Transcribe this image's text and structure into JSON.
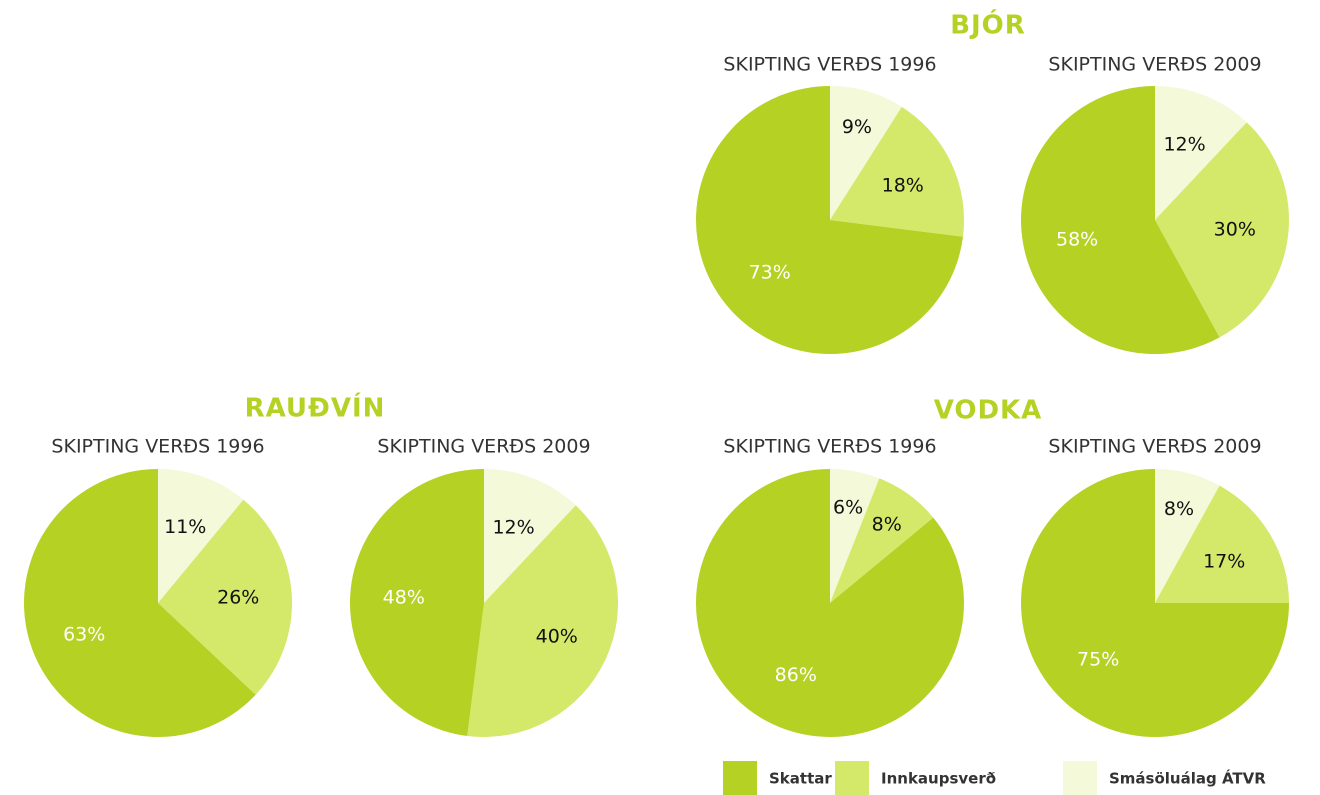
{
  "groups": [
    "BJÓR",
    "RAUÐVÍN",
    "VODKA"
  ],
  "chart_data": [
    {
      "type": "pie",
      "title": "SKIPTING VERÐS 1996",
      "categories": [
        "Skattar",
        "Innkaupsverð",
        "Smásöluálag ÁTVR"
      ],
      "colors": [
        "#b5d124",
        "#d4e86a",
        "#f3f9d9"
      ],
      "values": [
        73,
        18,
        9
      ],
      "value_labels": [
        "73%",
        "18%",
        "9%"
      ]
    },
    {
      "type": "pie",
      "title": "SKIPTING VERÐS 2009",
      "categories": [
        "Skattar",
        "Innkaupsverð",
        "Smásöluálag ÁTVR"
      ],
      "colors": [
        "#b5d124",
        "#d4e86a",
        "#f3f9d9"
      ],
      "values": [
        58,
        30,
        12
      ],
      "value_labels": [
        "58%",
        "30%",
        "12%"
      ]
    },
    {
      "type": "pie",
      "title": "SKIPTING VERÐS 1996",
      "categories": [
        "Skattar",
        "Innkaupsverð",
        "Smásöluálag ÁTVR"
      ],
      "colors": [
        "#b5d124",
        "#d4e86a",
        "#f3f9d9"
      ],
      "values": [
        63,
        26,
        11
      ],
      "value_labels": [
        "63%",
        "26%",
        "11%"
      ]
    },
    {
      "type": "pie",
      "title": "SKIPTING VERÐS 2009",
      "categories": [
        "Skattar",
        "Innkaupsverð",
        "Smásöluálag ÁTVR"
      ],
      "colors": [
        "#b5d124",
        "#d4e86a",
        "#f3f9d9"
      ],
      "values": [
        48,
        40,
        12
      ],
      "value_labels": [
        "48%",
        "40%",
        "12%"
      ]
    },
    {
      "type": "pie",
      "title": "SKIPTING VERÐS 1996",
      "categories": [
        "Skattar",
        "Innkaupsverð",
        "Smásöluálag ÁTVR"
      ],
      "colors": [
        "#b5d124",
        "#d4e86a",
        "#f3f9d9"
      ],
      "values": [
        86,
        8,
        6
      ],
      "value_labels": [
        "86%",
        "8%",
        "6%"
      ]
    },
    {
      "type": "pie",
      "title": "SKIPTING VERÐS 2009",
      "categories": [
        "Skattar",
        "Innkaupsverð",
        "Smásöluálag ÁTVR"
      ],
      "colors": [
        "#b5d124",
        "#d4e86a",
        "#f3f9d9"
      ],
      "values": [
        75,
        17,
        8
      ],
      "value_labels": [
        "75%",
        "17%",
        "8%"
      ]
    }
  ]
}
